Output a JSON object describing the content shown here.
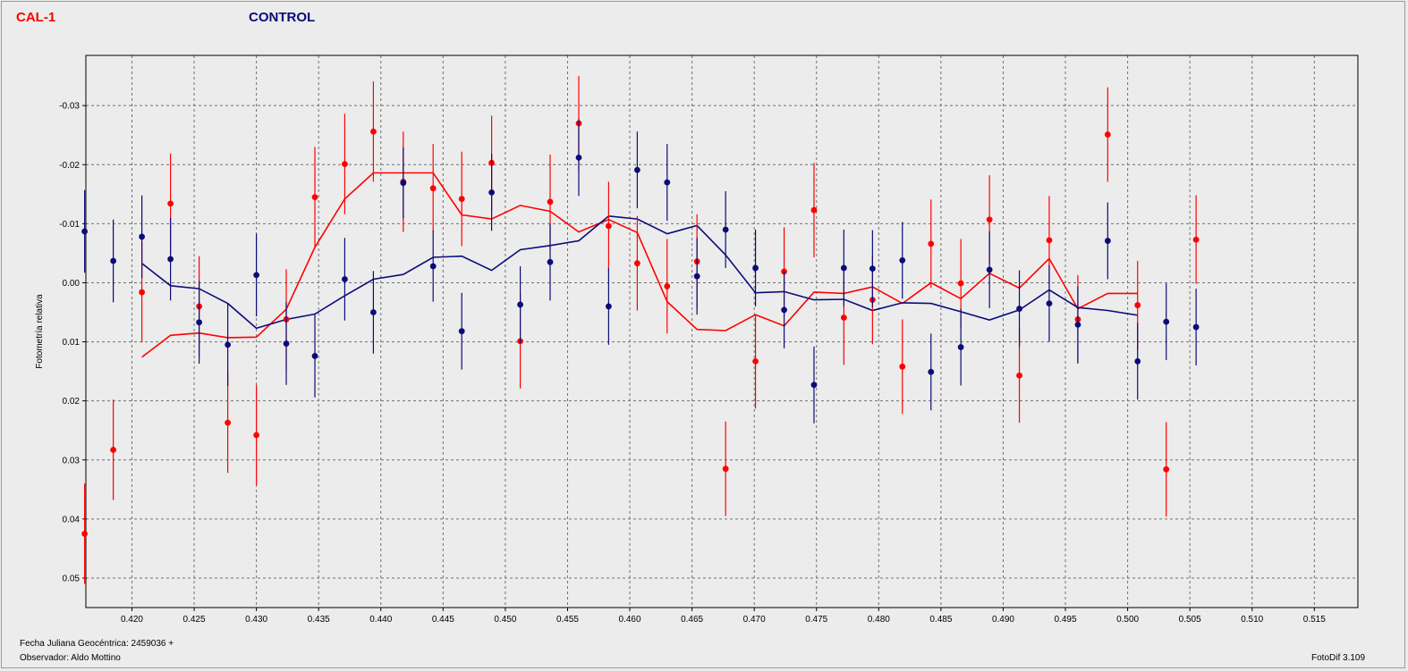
{
  "legend": {
    "series1": "CAL-1",
    "series2": "CONTROL"
  },
  "footer": {
    "date_label": "Fecha Juliana Geocéntrica: 2459036 +",
    "observer": "Observador: Aldo Mottino",
    "version": "FotoDif 3.109"
  },
  "colors": {
    "cal": "#ff0000",
    "control": "#0b0b7a"
  },
  "chart_data": {
    "type": "scatter",
    "ylabel": "Fotometría relativa",
    "xlabel": "",
    "xlim": [
      0.4163,
      0.5185
    ],
    "ylim": [
      0.055,
      -0.0385
    ],
    "y_inverted": true,
    "grid": true,
    "x_ticks": [
      "0.420",
      "0.425",
      "0.430",
      "0.435",
      "0.440",
      "0.445",
      "0.450",
      "0.455",
      "0.460",
      "0.465",
      "0.470",
      "0.475",
      "0.480",
      "0.485",
      "0.490",
      "0.495",
      "0.500",
      "0.505",
      "0.510",
      "0.515"
    ],
    "y_ticks": [
      "-0.03",
      "-0.02",
      "-0.01",
      "0.00",
      "0.01",
      "0.02",
      "0.03",
      "0.04",
      "0.05"
    ],
    "series": [
      {
        "name": "CAL-1",
        "points": [
          {
            "x": 0.4162,
            "y": 0.0425,
            "err": 0.0085
          },
          {
            "x": 0.4185,
            "y": 0.0283,
            "err": 0.0085
          },
          {
            "x": 0.4208,
            "y": 0.0016,
            "err": 0.0085
          },
          {
            "x": 0.4231,
            "y": -0.0134,
            "err": 0.0085
          },
          {
            "x": 0.4254,
            "y": 0.004,
            "err": 0.0085
          },
          {
            "x": 0.4277,
            "y": 0.0237,
            "err": 0.0085
          },
          {
            "x": 0.43,
            "y": 0.0258,
            "err": 0.0085
          },
          {
            "x": 0.4324,
            "y": 0.0062,
            "err": 0.0085
          },
          {
            "x": 0.4347,
            "y": -0.0145,
            "err": 0.0085
          },
          {
            "x": 0.4371,
            "y": -0.0201,
            "err": 0.0085
          },
          {
            "x": 0.4394,
            "y": -0.0256,
            "err": 0.0085
          },
          {
            "x": 0.4418,
            "y": -0.0171,
            "err": 0.0085
          },
          {
            "x": 0.4442,
            "y": -0.016,
            "err": 0.0075
          },
          {
            "x": 0.4465,
            "y": -0.0142,
            "err": 0.008
          },
          {
            "x": 0.4489,
            "y": -0.0203,
            "err": 0.008
          },
          {
            "x": 0.4512,
            "y": 0.0099,
            "err": 0.008
          },
          {
            "x": 0.4536,
            "y": -0.0137,
            "err": 0.008
          },
          {
            "x": 0.4559,
            "y": -0.027,
            "err": 0.008
          },
          {
            "x": 0.4583,
            "y": -0.0096,
            "err": 0.0075
          },
          {
            "x": 0.4606,
            "y": -0.0033,
            "err": 0.008
          },
          {
            "x": 0.463,
            "y": 0.0006,
            "err": 0.008
          },
          {
            "x": 0.4654,
            "y": -0.0036,
            "err": 0.008
          },
          {
            "x": 0.4677,
            "y": 0.0315,
            "err": 0.008
          },
          {
            "x": 0.4701,
            "y": 0.0133,
            "err": 0.008
          },
          {
            "x": 0.4724,
            "y": -0.0019,
            "err": 0.0075
          },
          {
            "x": 0.4748,
            "y": -0.0123,
            "err": 0.008
          },
          {
            "x": 0.4772,
            "y": 0.0059,
            "err": 0.008
          },
          {
            "x": 0.4795,
            "y": 0.0029,
            "err": 0.0075
          },
          {
            "x": 0.4819,
            "y": 0.0142,
            "err": 0.008
          },
          {
            "x": 0.4842,
            "y": -0.0066,
            "err": 0.0075
          },
          {
            "x": 0.4866,
            "y": 0.0001,
            "err": 0.0075
          },
          {
            "x": 0.4889,
            "y": -0.0107,
            "err": 0.0075
          },
          {
            "x": 0.4913,
            "y": 0.0157,
            "err": 0.008
          },
          {
            "x": 0.4937,
            "y": -0.0072,
            "err": 0.0075
          },
          {
            "x": 0.496,
            "y": 0.0062,
            "err": 0.0075
          },
          {
            "x": 0.4984,
            "y": -0.0251,
            "err": 0.008
          },
          {
            "x": 0.5008,
            "y": 0.0038,
            "err": 0.0075
          },
          {
            "x": 0.5031,
            "y": 0.0316,
            "err": 0.008
          },
          {
            "x": 0.5055,
            "y": -0.0073,
            "err": 0.0075
          }
        ],
        "line": [
          {
            "x": 0.4208,
            "y": 0.0126
          },
          {
            "x": 0.4231,
            "y": 0.0089
          },
          {
            "x": 0.4254,
            "y": 0.0085
          },
          {
            "x": 0.4277,
            "y": 0.0093
          },
          {
            "x": 0.43,
            "y": 0.0092
          },
          {
            "x": 0.4324,
            "y": 0.0045
          },
          {
            "x": 0.4347,
            "y": -0.006
          },
          {
            "x": 0.4371,
            "y": -0.0142
          },
          {
            "x": 0.4394,
            "y": -0.0186
          },
          {
            "x": 0.4418,
            "y": -0.0186
          },
          {
            "x": 0.4442,
            "y": -0.0186
          },
          {
            "x": 0.4465,
            "y": -0.0115
          },
          {
            "x": 0.4489,
            "y": -0.0108
          },
          {
            "x": 0.4512,
            "y": -0.0131
          },
          {
            "x": 0.4536,
            "y": -0.0121
          },
          {
            "x": 0.4559,
            "y": -0.0086
          },
          {
            "x": 0.4583,
            "y": -0.0107
          },
          {
            "x": 0.4606,
            "y": -0.0085
          },
          {
            "x": 0.463,
            "y": 0.0032
          },
          {
            "x": 0.4654,
            "y": 0.0079
          },
          {
            "x": 0.4677,
            "y": 0.0081
          },
          {
            "x": 0.4701,
            "y": 0.0054
          },
          {
            "x": 0.4724,
            "y": 0.0073
          },
          {
            "x": 0.4748,
            "y": 0.0016
          },
          {
            "x": 0.4772,
            "y": 0.0018
          },
          {
            "x": 0.4795,
            "y": 0.0007
          },
          {
            "x": 0.4819,
            "y": 0.0035
          },
          {
            "x": 0.4842,
            "y": 0.0
          },
          {
            "x": 0.4866,
            "y": 0.0027
          },
          {
            "x": 0.4889,
            "y": -0.0016
          },
          {
            "x": 0.4913,
            "y": 0.0009
          },
          {
            "x": 0.4937,
            "y": -0.0041
          },
          {
            "x": 0.496,
            "y": 0.0044
          },
          {
            "x": 0.4984,
            "y": 0.0018
          },
          {
            "x": 0.5008,
            "y": 0.0018
          }
        ]
      },
      {
        "name": "CONTROL",
        "points": [
          {
            "x": 0.4162,
            "y": -0.0087,
            "err": 0.007
          },
          {
            "x": 0.4185,
            "y": -0.0037,
            "err": 0.007
          },
          {
            "x": 0.4208,
            "y": -0.0078,
            "err": 0.007
          },
          {
            "x": 0.4231,
            "y": -0.004,
            "err": 0.007
          },
          {
            "x": 0.4254,
            "y": 0.0067,
            "err": 0.007
          },
          {
            "x": 0.4277,
            "y": 0.0105,
            "err": 0.007
          },
          {
            "x": 0.43,
            "y": -0.0013,
            "err": 0.007
          },
          {
            "x": 0.4324,
            "y": 0.0103,
            "err": 0.007
          },
          {
            "x": 0.4347,
            "y": 0.0124,
            "err": 0.007
          },
          {
            "x": 0.4371,
            "y": -0.0006,
            "err": 0.007
          },
          {
            "x": 0.4394,
            "y": 0.005,
            "err": 0.007
          },
          {
            "x": 0.4418,
            "y": -0.0169,
            "err": 0.006
          },
          {
            "x": 0.4442,
            "y": -0.0028,
            "err": 0.006
          },
          {
            "x": 0.4465,
            "y": 0.0082,
            "err": 0.0065
          },
          {
            "x": 0.4489,
            "y": -0.0153,
            "err": 0.0065
          },
          {
            "x": 0.4512,
            "y": 0.0037,
            "err": 0.0065
          },
          {
            "x": 0.4536,
            "y": -0.0035,
            "err": 0.0065
          },
          {
            "x": 0.4559,
            "y": -0.0212,
            "err": 0.0065
          },
          {
            "x": 0.4583,
            "y": 0.004,
            "err": 0.0065
          },
          {
            "x": 0.4606,
            "y": -0.0191,
            "err": 0.0065
          },
          {
            "x": 0.463,
            "y": -0.017,
            "err": 0.0065
          },
          {
            "x": 0.4654,
            "y": -0.0011,
            "err": 0.0065
          },
          {
            "x": 0.4677,
            "y": -0.009,
            "err": 0.0065
          },
          {
            "x": 0.4701,
            "y": -0.0025,
            "err": 0.0065
          },
          {
            "x": 0.4724,
            "y": 0.0046,
            "err": 0.0065
          },
          {
            "x": 0.4748,
            "y": 0.0173,
            "err": 0.0065
          },
          {
            "x": 0.4772,
            "y": -0.0025,
            "err": 0.0065
          },
          {
            "x": 0.4795,
            "y": -0.0024,
            "err": 0.0065
          },
          {
            "x": 0.4819,
            "y": -0.0038,
            "err": 0.0065
          },
          {
            "x": 0.4842,
            "y": 0.0151,
            "err": 0.0065
          },
          {
            "x": 0.4866,
            "y": 0.0109,
            "err": 0.0065
          },
          {
            "x": 0.4889,
            "y": -0.0022,
            "err": 0.0065
          },
          {
            "x": 0.4913,
            "y": 0.0044,
            "err": 0.0065
          },
          {
            "x": 0.4937,
            "y": 0.0035,
            "err": 0.0065
          },
          {
            "x": 0.496,
            "y": 0.0071,
            "err": 0.0065
          },
          {
            "x": 0.4984,
            "y": -0.0071,
            "err": 0.0065
          },
          {
            "x": 0.5008,
            "y": 0.0133,
            "err": 0.0065
          },
          {
            "x": 0.5031,
            "y": 0.0066,
            "err": 0.0065
          },
          {
            "x": 0.5055,
            "y": 0.0075,
            "err": 0.0065
          }
        ],
        "line": [
          {
            "x": 0.4208,
            "y": -0.0033
          },
          {
            "x": 0.4231,
            "y": 0.0005
          },
          {
            "x": 0.4254,
            "y": 0.001
          },
          {
            "x": 0.4277,
            "y": 0.0035
          },
          {
            "x": 0.43,
            "y": 0.0077
          },
          {
            "x": 0.4324,
            "y": 0.0062
          },
          {
            "x": 0.4347,
            "y": 0.0053
          },
          {
            "x": 0.4371,
            "y": 0.0022
          },
          {
            "x": 0.4394,
            "y": -0.0006
          },
          {
            "x": 0.4418,
            "y": -0.0014
          },
          {
            "x": 0.4442,
            "y": -0.0043
          },
          {
            "x": 0.4465,
            "y": -0.0045
          },
          {
            "x": 0.4489,
            "y": -0.0021
          },
          {
            "x": 0.4512,
            "y": -0.0056
          },
          {
            "x": 0.4536,
            "y": -0.0063
          },
          {
            "x": 0.4559,
            "y": -0.0071
          },
          {
            "x": 0.4583,
            "y": -0.0113
          },
          {
            "x": 0.4606,
            "y": -0.0108
          },
          {
            "x": 0.463,
            "y": -0.0083
          },
          {
            "x": 0.4654,
            "y": -0.0097
          },
          {
            "x": 0.4677,
            "y": -0.0047
          },
          {
            "x": 0.4701,
            "y": 0.0017
          },
          {
            "x": 0.4724,
            "y": 0.0015
          },
          {
            "x": 0.4748,
            "y": 0.0029
          },
          {
            "x": 0.4772,
            "y": 0.0028
          },
          {
            "x": 0.4795,
            "y": 0.0047
          },
          {
            "x": 0.4819,
            "y": 0.0034
          },
          {
            "x": 0.4842,
            "y": 0.0035
          },
          {
            "x": 0.4866,
            "y": 0.0049
          },
          {
            "x": 0.4889,
            "y": 0.0063
          },
          {
            "x": 0.4913,
            "y": 0.0046
          },
          {
            "x": 0.4937,
            "y": 0.0012
          },
          {
            "x": 0.496,
            "y": 0.0042
          },
          {
            "x": 0.4984,
            "y": 0.0047
          },
          {
            "x": 0.5008,
            "y": 0.0055
          }
        ]
      }
    ]
  }
}
